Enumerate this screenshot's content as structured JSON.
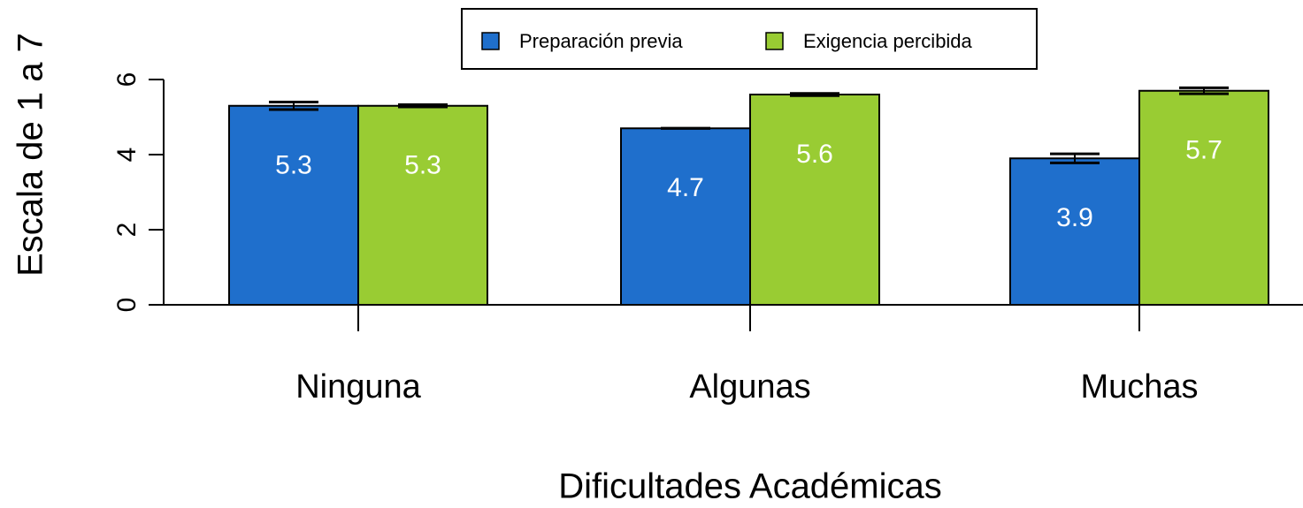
{
  "chart_data": {
    "type": "bar",
    "x_label": "Dificultades Académicas",
    "y_label": "Escala de 1 a 7",
    "categories": [
      "Ninguna",
      "Algunas",
      "Muchas"
    ],
    "series": [
      {
        "name": "Preparación previa",
        "color": "#1f6fcc",
        "values": [
          5.3,
          4.7,
          3.9
        ],
        "errors": [
          0.1,
          0,
          0.12
        ]
      },
      {
        "name": "Exigencia percibida",
        "color": "#99cc33",
        "values": [
          5.3,
          5.6,
          5.7
        ],
        "errors": [
          0.03,
          0.03,
          0.08
        ]
      }
    ],
    "ylim": [
      0,
      6
    ],
    "yticks": [
      0,
      2,
      4,
      6
    ],
    "legend": "top"
  }
}
